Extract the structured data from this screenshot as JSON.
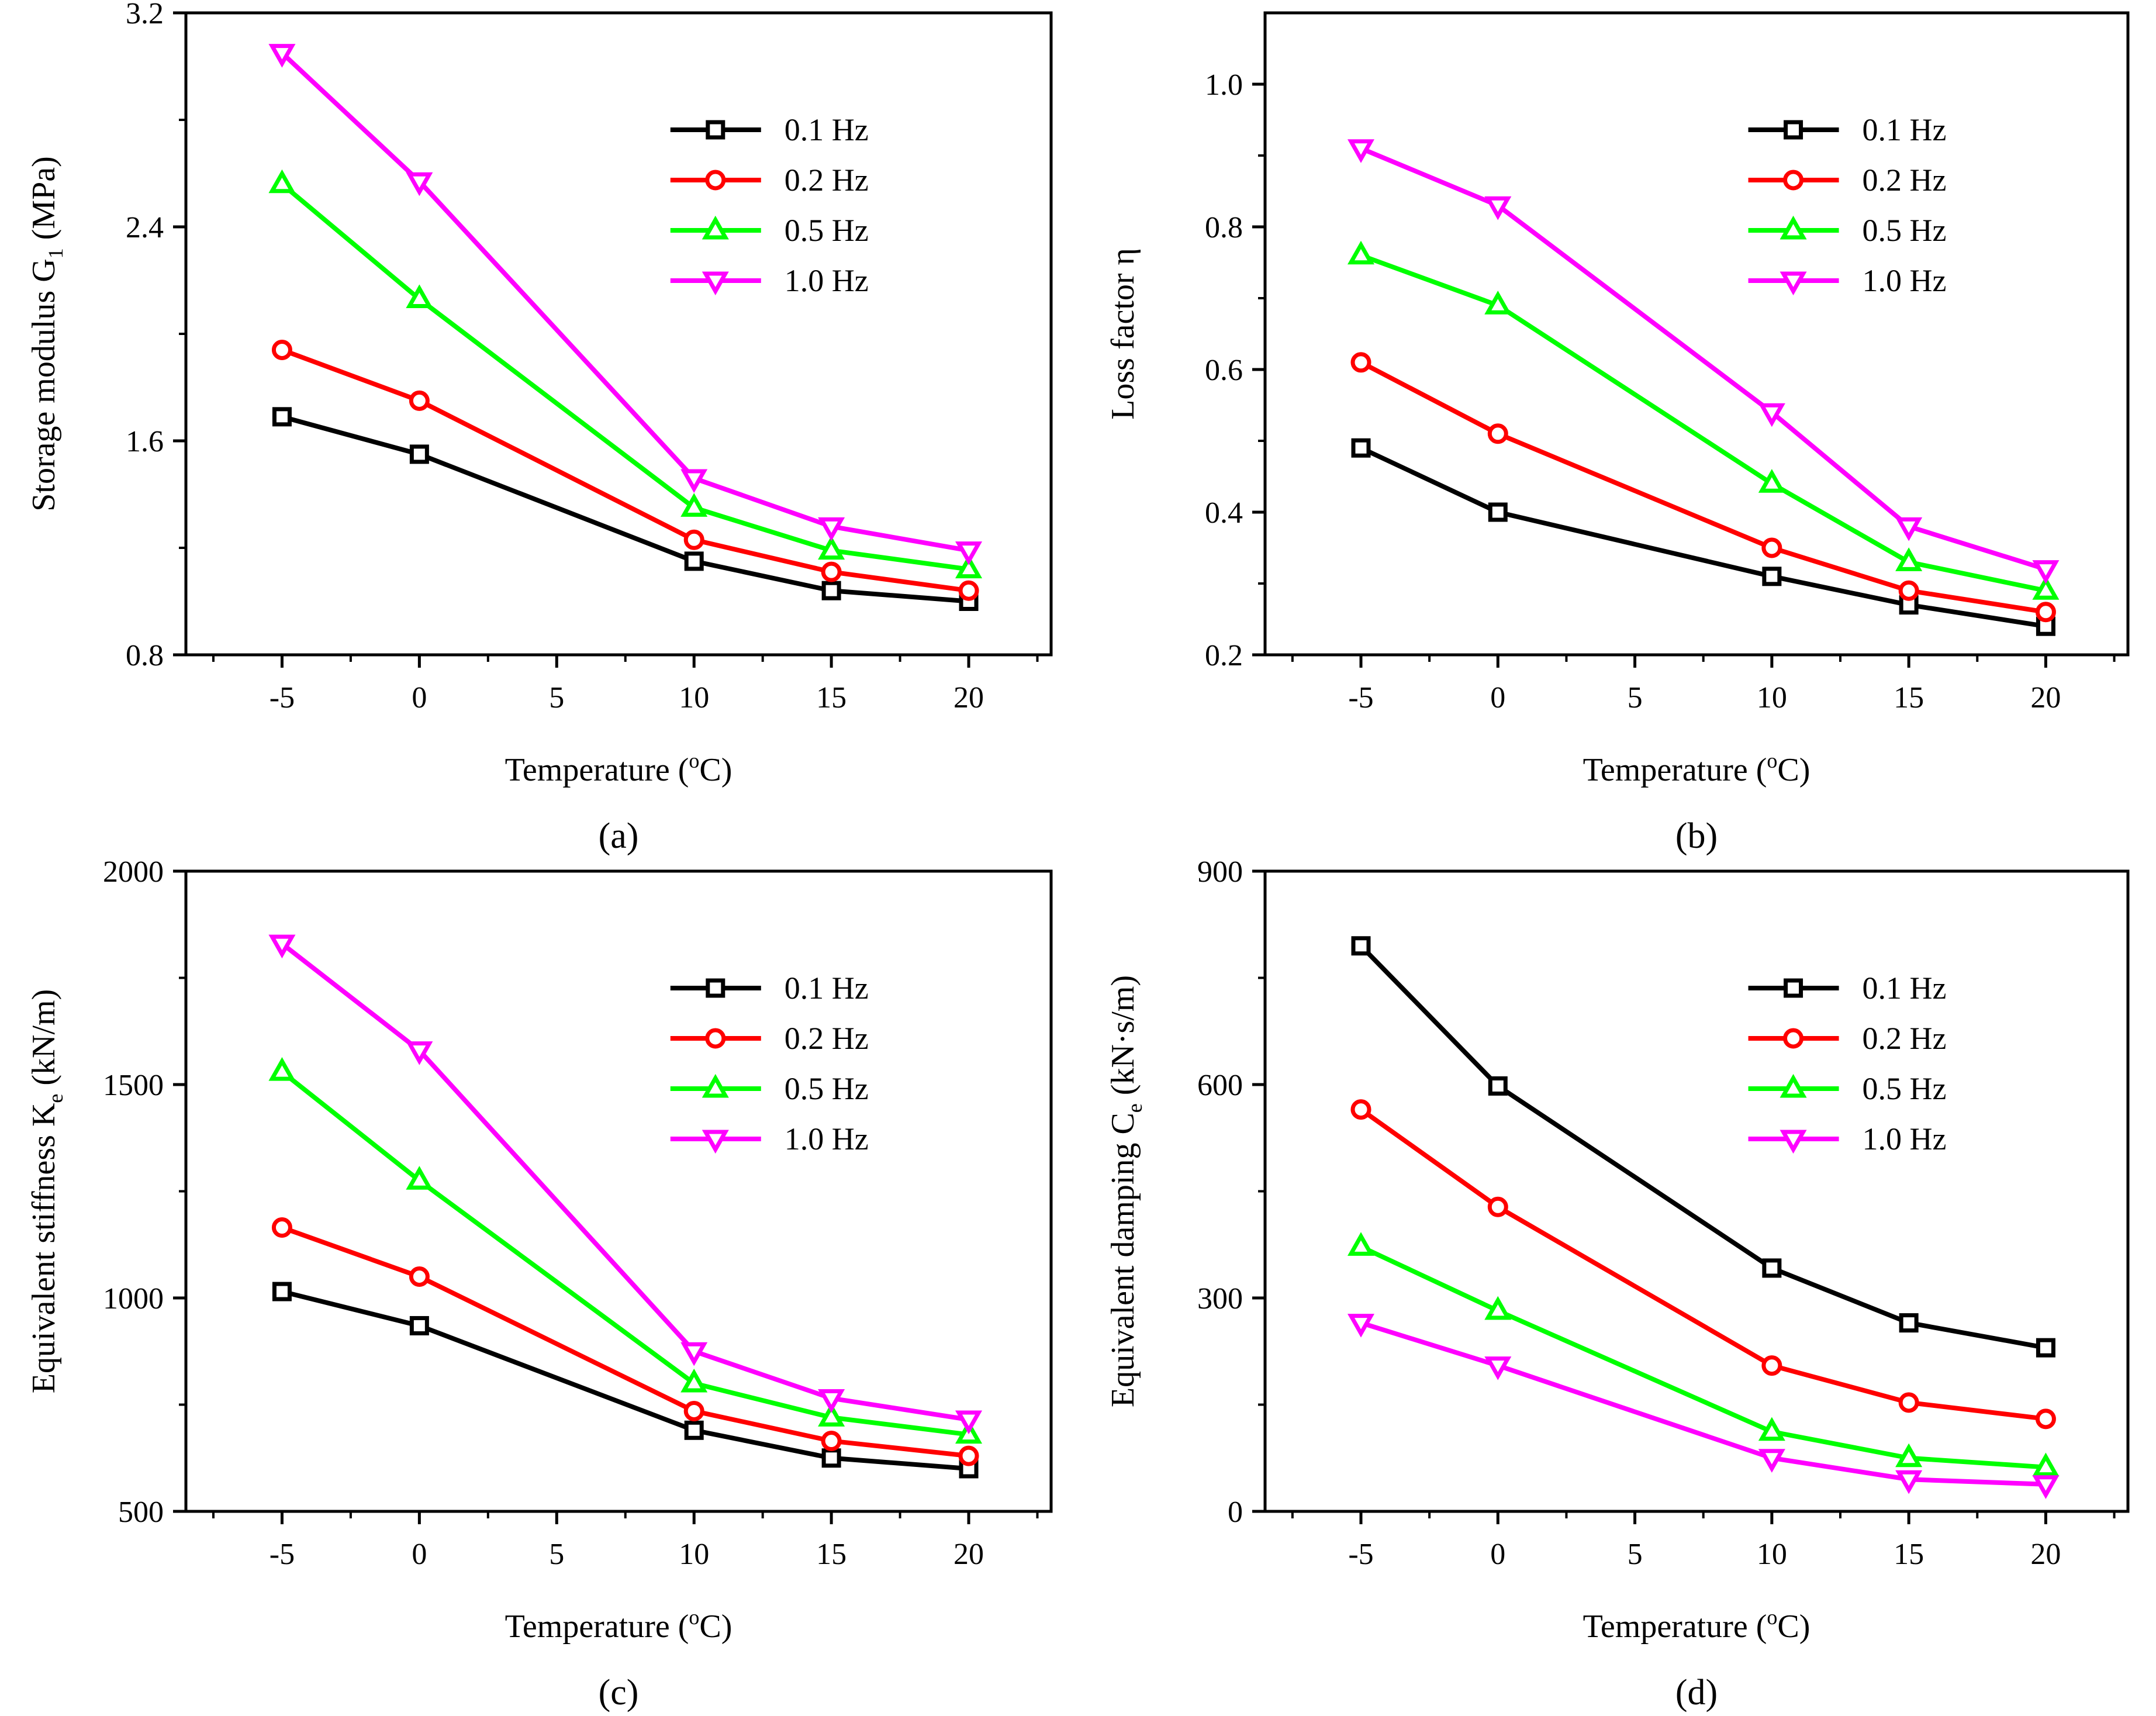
{
  "chart_data": [
    {
      "id": "a",
      "type": "line",
      "panel_label": "(a)",
      "x": [
        -5,
        0,
        10,
        15,
        20
      ],
      "xticks": [
        "-5",
        "0",
        "5",
        "10",
        "15",
        "20"
      ],
      "xlim": [
        -8.5,
        23
      ],
      "ylim": [
        0.8,
        3.2
      ],
      "yticks": [
        "0.8",
        "1.6",
        "2.4",
        "3.2"
      ],
      "xlabel": {
        "pre": "Temperature (",
        "sup": "o",
        "post": "C)"
      },
      "ylabel": {
        "pre": "Storage modulus G",
        "sub": "1",
        "post": " (MPa)"
      },
      "legend": "top-right",
      "series": [
        {
          "name": "0.1  Hz",
          "marker": "square",
          "color": "#000000",
          "values": [
            1.69,
            1.55,
            1.15,
            1.04,
            1.0
          ]
        },
        {
          "name": "0.2  Hz",
          "marker": "circle",
          "color": "#ff0000",
          "values": [
            1.94,
            1.75,
            1.23,
            1.11,
            1.04
          ]
        },
        {
          "name": "0.5  Hz",
          "marker": "triangle-up",
          "color": "#00ff00",
          "values": [
            2.56,
            2.13,
            1.35,
            1.19,
            1.12
          ]
        },
        {
          "name": "1.0  Hz",
          "marker": "triangle-down",
          "color": "#ff00ff",
          "values": [
            3.05,
            2.57,
            1.46,
            1.28,
            1.19
          ]
        }
      ]
    },
    {
      "id": "b",
      "type": "line",
      "panel_label": "(b)",
      "x": [
        -5,
        0,
        10,
        15,
        20
      ],
      "xticks": [
        "-5",
        "0",
        "5",
        "10",
        "15",
        "20"
      ],
      "xlim": [
        -8.5,
        23
      ],
      "ylim": [
        0.2,
        1.1
      ],
      "yticks": [
        "0.2",
        "0.4",
        "0.6",
        "0.8",
        "1.0"
      ],
      "xlabel": {
        "pre": "Temperature  (",
        "sup": "o",
        "post": "C)"
      },
      "ylabel": {
        "pre": "Loss factor η",
        "sub": "",
        "post": ""
      },
      "legend": "top-right",
      "series": [
        {
          "name": "0.1  Hz",
          "marker": "square",
          "color": "#000000",
          "values": [
            0.49,
            0.4,
            0.31,
            0.27,
            0.24
          ]
        },
        {
          "name": "0.2  Hz",
          "marker": "circle",
          "color": "#ff0000",
          "values": [
            0.61,
            0.51,
            0.35,
            0.29,
            0.26
          ]
        },
        {
          "name": "0.5  Hz",
          "marker": "triangle-up",
          "color": "#00ff00",
          "values": [
            0.76,
            0.69,
            0.44,
            0.33,
            0.29
          ]
        },
        {
          "name": "1.0  Hz",
          "marker": "triangle-down",
          "color": "#ff00ff",
          "values": [
            0.91,
            0.83,
            0.54,
            0.38,
            0.32
          ]
        }
      ]
    },
    {
      "id": "c",
      "type": "line",
      "panel_label": "(c)",
      "x": [
        -5,
        0,
        10,
        15,
        20
      ],
      "xticks": [
        "-5",
        "0",
        "5",
        "10",
        "15",
        "20"
      ],
      "xlim": [
        -8.5,
        23
      ],
      "ylim": [
        500,
        2000
      ],
      "yticks": [
        "500",
        "1000",
        "1500",
        "2000"
      ],
      "xlabel": {
        "pre": "Temperature (",
        "sup": "o",
        "post": "C)"
      },
      "ylabel": {
        "pre": "Equivalent stiffness K",
        "sub": "e",
        "post": " (kN/m)"
      },
      "legend": "top-right",
      "series": [
        {
          "name": "0.1  Hz",
          "marker": "square",
          "color": "#000000",
          "values": [
            1015,
            935,
            690,
            625,
            600
          ]
        },
        {
          "name": "0.2  Hz",
          "marker": "circle",
          "color": "#ff0000",
          "values": [
            1165,
            1050,
            735,
            665,
            630
          ]
        },
        {
          "name": "0.5  Hz",
          "marker": "triangle-up",
          "color": "#00ff00",
          "values": [
            1530,
            1275,
            800,
            720,
            680
          ]
        },
        {
          "name": "1.0  Hz",
          "marker": "triangle-down",
          "color": "#ff00ff",
          "values": [
            1830,
            1580,
            875,
            765,
            715
          ]
        }
      ]
    },
    {
      "id": "d",
      "type": "line",
      "panel_label": "(d)",
      "x": [
        -5,
        0,
        10,
        15,
        20
      ],
      "xticks": [
        "-5",
        "0",
        "5",
        "10",
        "15",
        "20"
      ],
      "xlim": [
        -8.5,
        23
      ],
      "ylim": [
        0,
        900
      ],
      "yticks": [
        "0",
        "300",
        "600",
        "900"
      ],
      "xlabel": {
        "pre": "Temperature (",
        "sup": "o",
        "post": "C)"
      },
      "ylabel": {
        "pre": "Equivalent damping C",
        "sub": "e",
        "post": " (kN·s/m)"
      },
      "legend": "top-right",
      "series": [
        {
          "name": "0.1  Hz",
          "marker": "square",
          "color": "#000000",
          "values": [
            795,
            598,
            342,
            265,
            230
          ]
        },
        {
          "name": "0.2  Hz",
          "marker": "circle",
          "color": "#ff0000",
          "values": [
            565,
            428,
            205,
            153,
            130
          ]
        },
        {
          "name": "0.5  Hz",
          "marker": "triangle-up",
          "color": "#00ff00",
          "values": [
            372,
            282,
            112,
            75,
            62
          ]
        },
        {
          "name": "1.0  Hz",
          "marker": "triangle-down",
          "color": "#ff00ff",
          "values": [
            265,
            205,
            75,
            45,
            38
          ]
        }
      ]
    }
  ]
}
